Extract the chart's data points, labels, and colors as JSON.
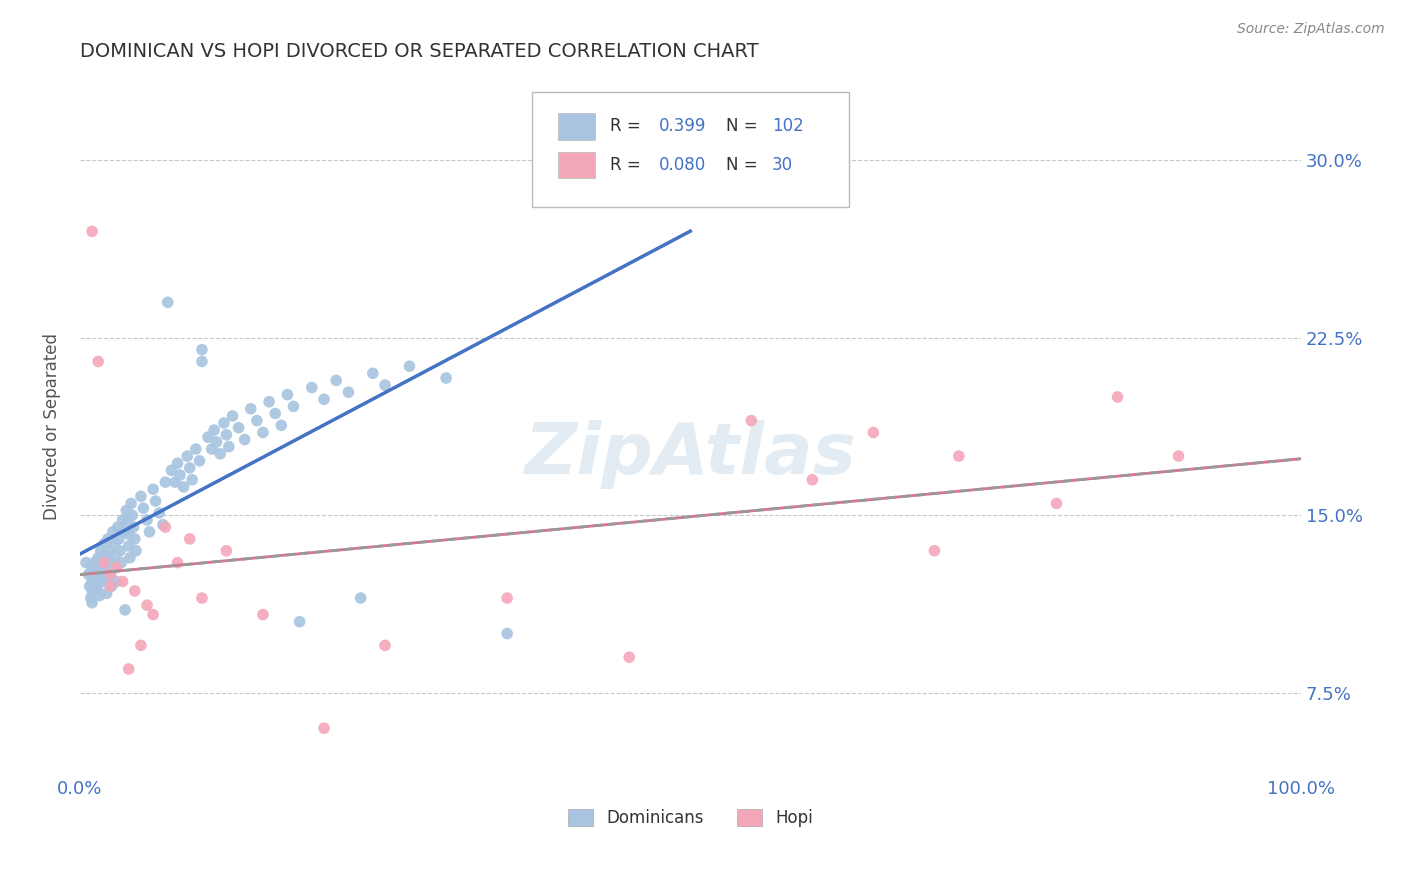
{
  "title": "DOMINICAN VS HOPI DIVORCED OR SEPARATED CORRELATION CHART",
  "source": "Source: ZipAtlas.com",
  "ylabel": "Divorced or Separated",
  "y_tick_labels": [
    "7.5%",
    "15.0%",
    "22.5%",
    "30.0%"
  ],
  "y_tick_values": [
    0.075,
    0.15,
    0.225,
    0.3
  ],
  "xlim": [
    0.0,
    1.0
  ],
  "ylim": [
    0.04,
    0.335
  ],
  "dominican_color": "#a8c4e0",
  "hopi_color": "#f4a7b9",
  "dominican_line_color": "#4472c4",
  "hopi_line_color": "#e07090",
  "hopi_dash_color": "#999999",
  "dominican_R": 0.399,
  "dominican_N": 102,
  "hopi_R": 0.08,
  "hopi_N": 30,
  "watermark": "ZipAtlas",
  "grid_color": "#c8c8c8",
  "title_color": "#333333",
  "axis_label_color": "#4472c4",
  "dominican_scatter": [
    [
      0.005,
      0.13
    ],
    [
      0.007,
      0.125
    ],
    [
      0.008,
      0.12
    ],
    [
      0.009,
      0.115
    ],
    [
      0.01,
      0.128
    ],
    [
      0.01,
      0.122
    ],
    [
      0.01,
      0.118
    ],
    [
      0.01,
      0.113
    ],
    [
      0.012,
      0.13
    ],
    [
      0.013,
      0.124
    ],
    [
      0.014,
      0.119
    ],
    [
      0.015,
      0.132
    ],
    [
      0.015,
      0.126
    ],
    [
      0.015,
      0.121
    ],
    [
      0.016,
      0.116
    ],
    [
      0.017,
      0.135
    ],
    [
      0.018,
      0.129
    ],
    [
      0.019,
      0.123
    ],
    [
      0.02,
      0.138
    ],
    [
      0.02,
      0.133
    ],
    [
      0.02,
      0.127
    ],
    [
      0.021,
      0.122
    ],
    [
      0.022,
      0.117
    ],
    [
      0.023,
      0.14
    ],
    [
      0.024,
      0.135
    ],
    [
      0.025,
      0.13
    ],
    [
      0.025,
      0.125
    ],
    [
      0.026,
      0.12
    ],
    [
      0.027,
      0.143
    ],
    [
      0.028,
      0.138
    ],
    [
      0.029,
      0.133
    ],
    [
      0.03,
      0.128
    ],
    [
      0.03,
      0.122
    ],
    [
      0.031,
      0.145
    ],
    [
      0.032,
      0.14
    ],
    [
      0.033,
      0.135
    ],
    [
      0.034,
      0.13
    ],
    [
      0.035,
      0.148
    ],
    [
      0.036,
      0.143
    ],
    [
      0.037,
      0.11
    ],
    [
      0.038,
      0.152
    ],
    [
      0.039,
      0.147
    ],
    [
      0.04,
      0.142
    ],
    [
      0.04,
      0.137
    ],
    [
      0.041,
      0.132
    ],
    [
      0.042,
      0.155
    ],
    [
      0.043,
      0.15
    ],
    [
      0.044,
      0.145
    ],
    [
      0.045,
      0.14
    ],
    [
      0.046,
      0.135
    ],
    [
      0.05,
      0.158
    ],
    [
      0.052,
      0.153
    ],
    [
      0.055,
      0.148
    ],
    [
      0.057,
      0.143
    ],
    [
      0.06,
      0.161
    ],
    [
      0.062,
      0.156
    ],
    [
      0.065,
      0.151
    ],
    [
      0.068,
      0.146
    ],
    [
      0.07,
      0.164
    ],
    [
      0.072,
      0.24
    ],
    [
      0.075,
      0.169
    ],
    [
      0.078,
      0.164
    ],
    [
      0.08,
      0.172
    ],
    [
      0.082,
      0.167
    ],
    [
      0.085,
      0.162
    ],
    [
      0.088,
      0.175
    ],
    [
      0.09,
      0.17
    ],
    [
      0.092,
      0.165
    ],
    [
      0.095,
      0.178
    ],
    [
      0.098,
      0.173
    ],
    [
      0.1,
      0.22
    ],
    [
      0.1,
      0.215
    ],
    [
      0.105,
      0.183
    ],
    [
      0.108,
      0.178
    ],
    [
      0.11,
      0.186
    ],
    [
      0.112,
      0.181
    ],
    [
      0.115,
      0.176
    ],
    [
      0.118,
      0.189
    ],
    [
      0.12,
      0.184
    ],
    [
      0.122,
      0.179
    ],
    [
      0.125,
      0.192
    ],
    [
      0.13,
      0.187
    ],
    [
      0.135,
      0.182
    ],
    [
      0.14,
      0.195
    ],
    [
      0.145,
      0.19
    ],
    [
      0.15,
      0.185
    ],
    [
      0.155,
      0.198
    ],
    [
      0.16,
      0.193
    ],
    [
      0.165,
      0.188
    ],
    [
      0.17,
      0.201
    ],
    [
      0.175,
      0.196
    ],
    [
      0.18,
      0.105
    ],
    [
      0.19,
      0.204
    ],
    [
      0.2,
      0.199
    ],
    [
      0.21,
      0.207
    ],
    [
      0.22,
      0.202
    ],
    [
      0.23,
      0.115
    ],
    [
      0.24,
      0.21
    ],
    [
      0.25,
      0.205
    ],
    [
      0.27,
      0.213
    ],
    [
      0.3,
      0.208
    ],
    [
      0.35,
      0.1
    ]
  ],
  "hopi_scatter": [
    [
      0.01,
      0.27
    ],
    [
      0.015,
      0.215
    ],
    [
      0.02,
      0.13
    ],
    [
      0.025,
      0.125
    ],
    [
      0.025,
      0.12
    ],
    [
      0.03,
      0.128
    ],
    [
      0.035,
      0.122
    ],
    [
      0.04,
      0.085
    ],
    [
      0.045,
      0.118
    ],
    [
      0.05,
      0.095
    ],
    [
      0.055,
      0.112
    ],
    [
      0.06,
      0.108
    ],
    [
      0.07,
      0.145
    ],
    [
      0.08,
      0.13
    ],
    [
      0.09,
      0.14
    ],
    [
      0.1,
      0.115
    ],
    [
      0.12,
      0.135
    ],
    [
      0.15,
      0.108
    ],
    [
      0.2,
      0.06
    ],
    [
      0.25,
      0.095
    ],
    [
      0.35,
      0.115
    ],
    [
      0.45,
      0.09
    ],
    [
      0.55,
      0.19
    ],
    [
      0.6,
      0.165
    ],
    [
      0.65,
      0.185
    ],
    [
      0.7,
      0.135
    ],
    [
      0.72,
      0.175
    ],
    [
      0.8,
      0.155
    ],
    [
      0.85,
      0.2
    ],
    [
      0.9,
      0.175
    ]
  ],
  "bottom_legend_labels": [
    "Dominicans",
    "Hopi"
  ]
}
